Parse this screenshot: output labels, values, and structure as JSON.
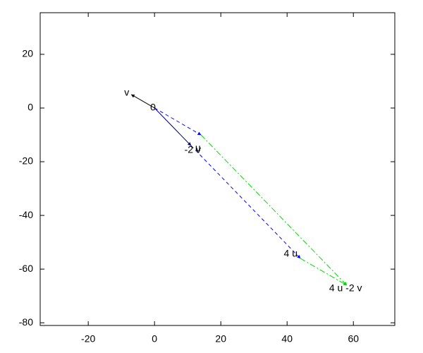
{
  "chart_data": {
    "type": "vector",
    "xlim": [
      -34.5,
      72.5
    ],
    "ylim": [
      -81,
      35.5
    ],
    "xticks": [
      -20,
      0,
      20,
      40,
      60
    ],
    "yticks": [
      -80,
      -60,
      -40,
      -20,
      0,
      20
    ],
    "segments": [
      {
        "color": "#000080",
        "dash": "solid",
        "x": [
          0,
          11
        ],
        "y": [
          0,
          -14
        ]
      },
      {
        "color": "#000000",
        "dash": "solid",
        "x": [
          0,
          -7
        ],
        "y": [
          0,
          5
        ]
      },
      {
        "color": "#0000ff",
        "dash": "dashed",
        "x": [
          0,
          14
        ],
        "y": [
          0,
          -10
        ]
      },
      {
        "color": "#0000ff",
        "dash": "dashed",
        "x": [
          11,
          44
        ],
        "y": [
          -14,
          -56
        ]
      },
      {
        "color": "#00dd00",
        "dash": "dashdot",
        "x": [
          14,
          58
        ],
        "y": [
          -10,
          -66
        ]
      },
      {
        "color": "#00dd00",
        "dash": "dashdot",
        "x": [
          44,
          58
        ],
        "y": [
          -56,
          -66
        ]
      }
    ],
    "points": [
      {
        "label": "0",
        "x": 0,
        "y": 0
      },
      {
        "label": "v",
        "x": -7,
        "y": 5
      },
      {
        "label": "u",
        "x": 11,
        "y": -14
      },
      {
        "label": "-2 v",
        "x": 14,
        "y": -10
      },
      {
        "label": "4 u",
        "x": 44,
        "y": -56
      },
      {
        "label": "4 u -2 v",
        "x": 58,
        "y": -66
      }
    ]
  }
}
